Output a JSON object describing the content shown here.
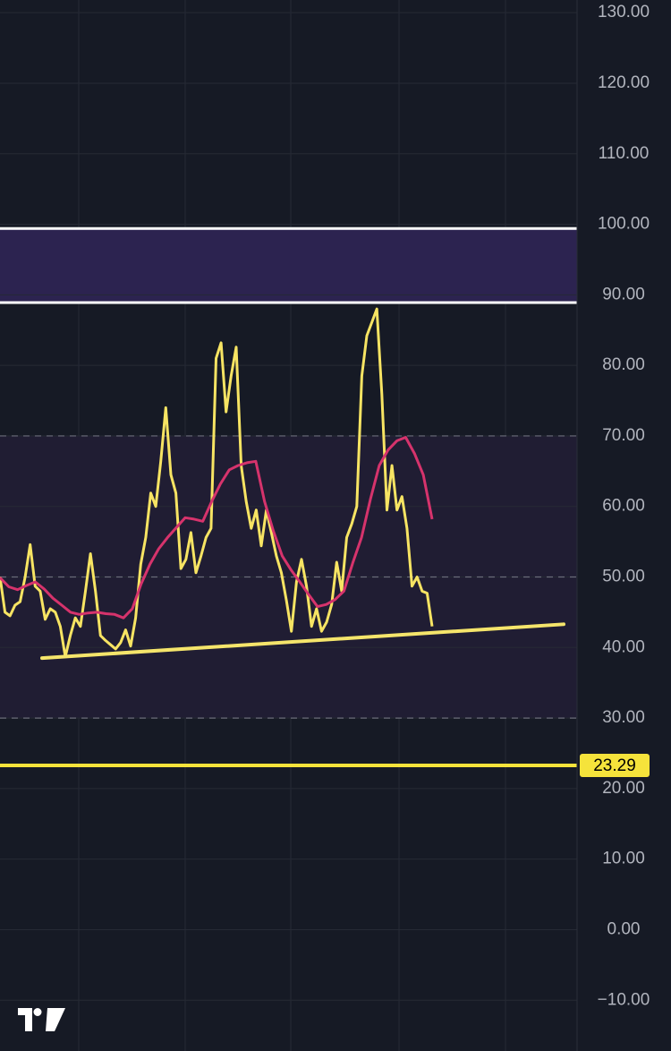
{
  "chart_data": {
    "type": "line",
    "ylim": [
      -17.2,
      131.8
    ],
    "yticks": [
      {
        "value": 130,
        "label": "130.00"
      },
      {
        "value": 120,
        "label": "120.00"
      },
      {
        "value": 110,
        "label": "110.00"
      },
      {
        "value": 100,
        "label": "100.00"
      },
      {
        "value": 90,
        "label": "90.00"
      },
      {
        "value": 80,
        "label": "80.00"
      },
      {
        "value": 70,
        "label": "70.00"
      },
      {
        "value": 60,
        "label": "60.00"
      },
      {
        "value": 50,
        "label": "50.00"
      },
      {
        "value": 40,
        "label": "40.00"
      },
      {
        "value": 30,
        "label": "30.00"
      },
      {
        "value": 20,
        "label": "20.00"
      },
      {
        "value": 10,
        "label": "10.00"
      },
      {
        "value": 0,
        "label": "0.00"
      },
      {
        "value": -10,
        "label": "−10.00"
      }
    ],
    "grid": true,
    "band": {
      "range": [
        30,
        70
      ],
      "color": "#201d33"
    },
    "dashed_levels": [
      70,
      50,
      30
    ],
    "zone": {
      "range": [
        88.9,
        99.4
      ],
      "color": "#2c2350",
      "border": "#ffffff"
    },
    "price_line": {
      "value": 23.29,
      "color": "#f5e33b"
    },
    "trendline": {
      "values": [
        38.5,
        43.3
      ],
      "color": "#f5e56b"
    },
    "series": [
      {
        "color": "#f7e463",
        "values": [
          50,
          45,
          44.5,
          46,
          46.5,
          50,
          54.6,
          48.7,
          48,
          44,
          45.5,
          45,
          43,
          38.7,
          41.7,
          44.2,
          43,
          48,
          53.3,
          48,
          41.7,
          41,
          40.4,
          39.8,
          40.7,
          42.5,
          40.2,
          44.2,
          51.8,
          55.6,
          61.9,
          60,
          66.4,
          74,
          64.5,
          61.9,
          51.2,
          52.5,
          56.3,
          50.6,
          53,
          55.6,
          56.9,
          81,
          83.2,
          73.4,
          78.5,
          82.6,
          65.8,
          60.7,
          56.9,
          59.5,
          54.4,
          59.5,
          56.3,
          53,
          50.6,
          46.7,
          42.3,
          49.3,
          52.5,
          48.7,
          43,
          45.5,
          42.3,
          43.6,
          46.1,
          52.1,
          48,
          55.6,
          57.5,
          60,
          78.5,
          84.2,
          86.1,
          88,
          75.9,
          59.5,
          65.8,
          59.5,
          61.4,
          56.9,
          48.7,
          50,
          48,
          47.7,
          43
        ]
      },
      {
        "color": "#d6336c",
        "values": [
          49.9,
          48.6,
          48.2,
          48.8,
          49.3,
          48.3,
          47,
          46,
          45,
          44.7,
          44.9,
          45,
          44.8,
          44.7,
          44.2,
          45.5,
          49,
          51.8,
          54,
          55.6,
          57,
          58.4,
          58.2,
          57.9,
          60.7,
          63.2,
          65.2,
          65.8,
          66.2,
          66.4,
          60.7,
          56.5,
          53,
          51,
          49.3,
          47.5,
          45.8,
          46.1,
          46.8,
          48,
          52,
          55.6,
          61,
          65.8,
          68,
          69.3,
          69.8,
          67.5,
          64.5,
          58.2
        ]
      }
    ]
  }
}
